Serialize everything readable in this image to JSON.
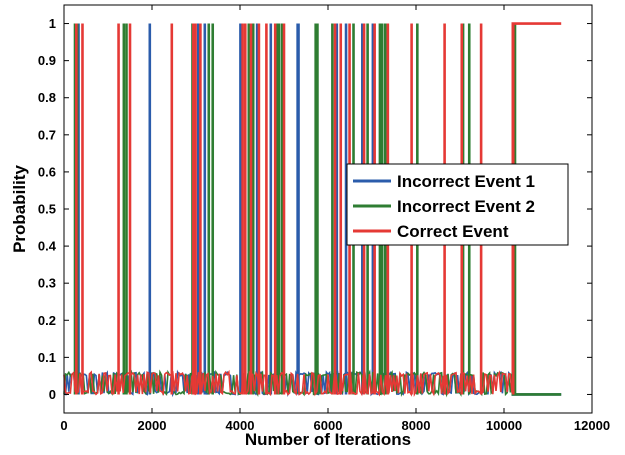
{
  "chart_data": {
    "type": "line",
    "title": "",
    "xlabel": "Number of Iterations",
    "ylabel": "Probability",
    "xlim": [
      0,
      12000
    ],
    "ylim": [
      -0.05,
      1.05
    ],
    "xticks": [
      0,
      2000,
      4000,
      6000,
      8000,
      10000,
      12000
    ],
    "yticks": [
      0,
      0.1,
      0.2,
      0.3,
      0.4,
      0.5,
      0.6,
      0.7,
      0.8,
      0.9,
      1
    ],
    "xtick_labels": [
      "0",
      "2000",
      "4000",
      "6000",
      "8000",
      "10000",
      "12000"
    ],
    "ytick_labels": [
      "0",
      "0.1",
      "0.2",
      "0.3",
      "0.4",
      "0.5",
      "0.6",
      "0.7",
      "0.8",
      "0.9",
      "1"
    ],
    "grid": false,
    "legend_position": "center-right",
    "noise_band": [
      0,
      0.06
    ],
    "convergence_iteration": 10200,
    "last_iteration": 11300,
    "series": [
      {
        "name": "Incorrect Event 1",
        "color": "#2b5cab",
        "spikes_to_1": [
          330,
          1950,
          3050,
          3200,
          4010,
          4390,
          4700,
          5310,
          5330,
          6200,
          6410,
          6780,
          7020
        ],
        "final_value": 0
      },
      {
        "name": "Incorrect Event 2",
        "color": "#2e7d32",
        "spikes_to_1": [
          250,
          300,
          1360,
          1420,
          2920,
          3290,
          3380,
          4200,
          4300,
          4840,
          4890,
          4960,
          5720,
          5760,
          6100,
          6580,
          6900,
          7180,
          7230,
          7300,
          8030,
          9070,
          9210,
          10250
        ],
        "final_value": 0
      },
      {
        "name": "Correct Event",
        "color": "#e53935",
        "spikes_to_1": [
          280,
          420,
          1240,
          1500,
          2450,
          2940,
          2990,
          3100,
          4060,
          4120,
          4250,
          4430,
          4600,
          4800,
          5000,
          6160,
          6290,
          6490,
          6820,
          7060,
          7360,
          7900,
          8650,
          9040,
          9480,
          10210
        ],
        "final_value": 1
      }
    ]
  }
}
